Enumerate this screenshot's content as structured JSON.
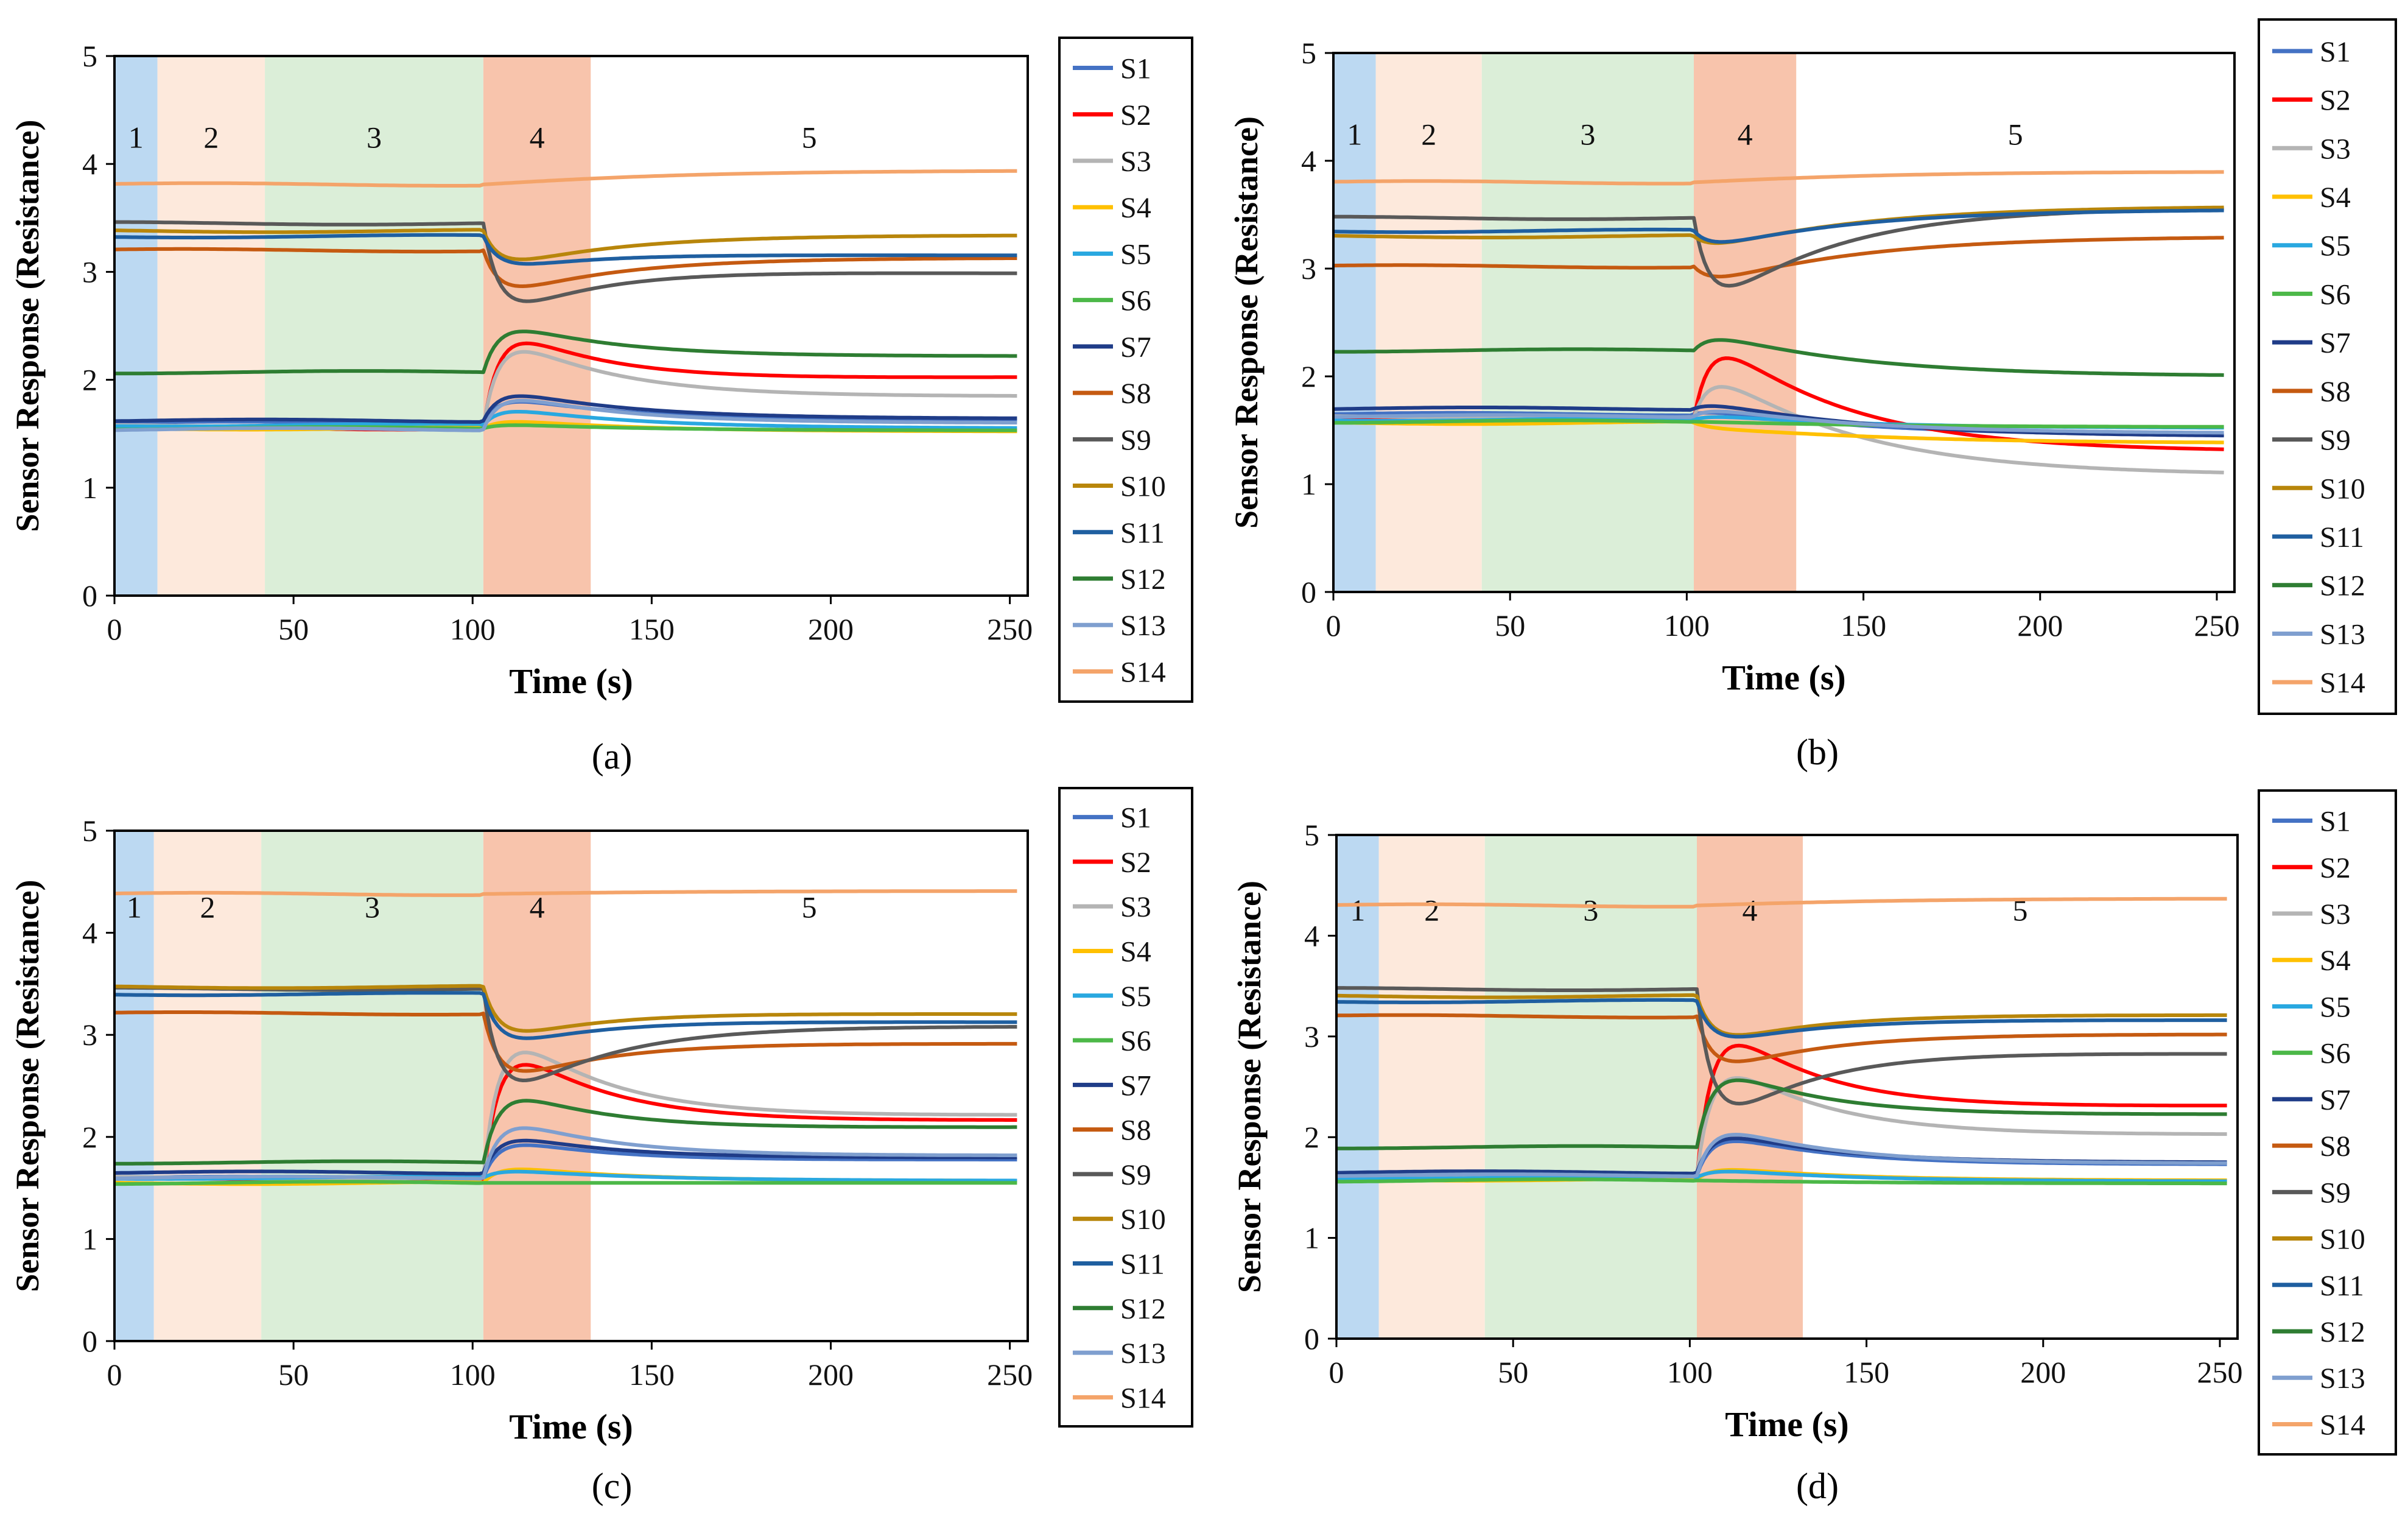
{
  "figure": {
    "phase_colors": [
      "#bcd9f2",
      "#fde9dc",
      "#dbeed8",
      "#f8c4ac",
      "#ffffff"
    ],
    "panels_order": [
      "a",
      "b",
      "c",
      "d"
    ]
  },
  "chart_data": [
    {
      "id": "a",
      "type": "line",
      "subcaption": "(a)",
      "xlabel": "Time (s)",
      "ylabel": "Sensor Response (Resistance)",
      "xlim": [
        0,
        255
      ],
      "ylim": [
        0,
        5
      ],
      "xticks": [
        0,
        50,
        100,
        150,
        200,
        250
      ],
      "yticks": [
        0,
        1,
        2,
        3,
        4,
        5
      ],
      "phases": [
        {
          "label": "1",
          "start": 0,
          "end": 12
        },
        {
          "label": "2",
          "start": 12,
          "end": 42
        },
        {
          "label": "3",
          "start": 42,
          "end": 103
        },
        {
          "label": "4",
          "start": 103,
          "end": 133
        },
        {
          "label": "5",
          "start": 133,
          "end": 255
        }
      ],
      "series": [
        {
          "name": "S1",
          "color": "#4472c4",
          "base": 1.6,
          "dip": 0.3,
          "final": 1.62
        },
        {
          "name": "S2",
          "color": "#ff0000",
          "base": 1.55,
          "dip": 1.1,
          "final": 2.03
        },
        {
          "name": "S3",
          "color": "#b4b4b4",
          "base": 1.57,
          "dip": 1.0,
          "final": 1.85
        },
        {
          "name": "S4",
          "color": "#ffc000",
          "base": 1.55,
          "dip": 0.1,
          "final": 1.52
        },
        {
          "name": "S5",
          "color": "#29a8e0",
          "base": 1.58,
          "dip": 0.2,
          "final": 1.55
        },
        {
          "name": "S6",
          "color": "#4cb848",
          "base": 1.55,
          "dip": 0.05,
          "final": 1.53
        },
        {
          "name": "S7",
          "color": "#1f3c88",
          "base": 1.62,
          "dip": 0.35,
          "final": 1.64
        },
        {
          "name": "S8",
          "color": "#c55a11",
          "base": 3.2,
          "dip": -0.5,
          "final": 3.13
        },
        {
          "name": "S9",
          "color": "#595959",
          "base": 3.45,
          "dip": -1.0,
          "final": 2.98
        },
        {
          "name": "S10",
          "color": "#b8860b",
          "base": 3.38,
          "dip": -0.4,
          "final": 3.34
        },
        {
          "name": "S11",
          "color": "#1f5fa0",
          "base": 3.33,
          "dip": -0.35,
          "final": 3.15
        },
        {
          "name": "S12",
          "color": "#2e7d32",
          "base": 2.07,
          "dip": 0.55,
          "final": 2.22
        },
        {
          "name": "S13",
          "color": "#7f9fcf",
          "base": 1.54,
          "dip": 0.4,
          "final": 1.6
        },
        {
          "name": "S14",
          "color": "#f4a46a",
          "base": 3.81,
          "dip": 0.0,
          "final": 3.94
        }
      ]
    },
    {
      "id": "b",
      "type": "line",
      "subcaption": "(b)",
      "xlabel": "Time (s)",
      "ylabel": "Sensor Response (Resistance)",
      "xlim": [
        0,
        255
      ],
      "ylim": [
        0,
        5
      ],
      "xticks": [
        0,
        50,
        100,
        150,
        200,
        250
      ],
      "yticks": [
        0,
        1,
        2,
        3,
        4,
        5
      ],
      "phases": [
        {
          "label": "1",
          "start": 0,
          "end": 12
        },
        {
          "label": "2",
          "start": 12,
          "end": 42
        },
        {
          "label": "3",
          "start": 42,
          "end": 102
        },
        {
          "label": "4",
          "start": 102,
          "end": 131
        },
        {
          "label": "5",
          "start": 131,
          "end": 255
        }
      ],
      "series": [
        {
          "name": "S1",
          "color": "#4472c4",
          "base": 1.65,
          "dip": 0.05,
          "final": 1.45
        },
        {
          "name": "S2",
          "color": "#ff0000",
          "base": 1.6,
          "dip": 0.95,
          "final": 1.3
        },
        {
          "name": "S3",
          "color": "#b4b4b4",
          "base": 1.62,
          "dip": 0.55,
          "final": 1.08
        },
        {
          "name": "S4",
          "color": "#ffc000",
          "base": 1.57,
          "dip": -0.05,
          "final": 1.38
        },
        {
          "name": "S5",
          "color": "#29a8e0",
          "base": 1.6,
          "dip": 0.05,
          "final": 1.52
        },
        {
          "name": "S6",
          "color": "#4cb848",
          "base": 1.58,
          "dip": 0.0,
          "final": 1.53
        },
        {
          "name": "S7",
          "color": "#1f3c88",
          "base": 1.7,
          "dip": 0.08,
          "final": 1.44
        },
        {
          "name": "S8",
          "color": "#c55a11",
          "base": 3.02,
          "dip": -0.2,
          "final": 3.3
        },
        {
          "name": "S9",
          "color": "#595959",
          "base": 3.47,
          "dip": -1.0,
          "final": 3.57
        },
        {
          "name": "S10",
          "color": "#b8860b",
          "base": 3.3,
          "dip": -0.15,
          "final": 3.58
        },
        {
          "name": "S11",
          "color": "#1f5fa0",
          "base": 3.35,
          "dip": -0.2,
          "final": 3.55
        },
        {
          "name": "S12",
          "color": "#2e7d32",
          "base": 2.24,
          "dip": 0.2,
          "final": 2.0
        },
        {
          "name": "S13",
          "color": "#7f9fcf",
          "base": 1.63,
          "dip": 0.1,
          "final": 1.47
        },
        {
          "name": "S14",
          "color": "#f4a46a",
          "base": 3.8,
          "dip": 0.0,
          "final": 3.9
        }
      ]
    },
    {
      "id": "c",
      "type": "line",
      "subcaption": "(c)",
      "xlabel": "Time (s)",
      "ylabel": "Sensor Response (Resistance)",
      "xlim": [
        0,
        255
      ],
      "ylim": [
        0,
        5
      ],
      "xticks": [
        0,
        50,
        100,
        150,
        200,
        250
      ],
      "yticks": [
        0,
        1,
        2,
        3,
        4,
        5
      ],
      "phases": [
        {
          "label": "1",
          "start": 0,
          "end": 11
        },
        {
          "label": "2",
          "start": 11,
          "end": 41
        },
        {
          "label": "3",
          "start": 41,
          "end": 103
        },
        {
          "label": "4",
          "start": 103,
          "end": 133
        },
        {
          "label": "5",
          "start": 133,
          "end": 255
        }
      ],
      "series": [
        {
          "name": "S1",
          "color": "#4472c4",
          "base": 1.6,
          "dip": 0.45,
          "final": 1.78
        },
        {
          "name": "S2",
          "color": "#ff0000",
          "base": 1.58,
          "dip": 1.6,
          "final": 2.17
        },
        {
          "name": "S3",
          "color": "#b4b4b4",
          "base": 1.6,
          "dip": 1.75,
          "final": 2.22
        },
        {
          "name": "S4",
          "color": "#ffc000",
          "base": 1.55,
          "dip": 0.2,
          "final": 1.57
        },
        {
          "name": "S5",
          "color": "#29a8e0",
          "base": 1.6,
          "dip": 0.1,
          "final": 1.57
        },
        {
          "name": "S6",
          "color": "#4cb848",
          "base": 1.55,
          "dip": 0.0,
          "final": 1.55
        },
        {
          "name": "S7",
          "color": "#1f3c88",
          "base": 1.65,
          "dip": 0.45,
          "final": 1.8
        },
        {
          "name": "S8",
          "color": "#c55a11",
          "base": 3.21,
          "dip": -0.8,
          "final": 2.91
        },
        {
          "name": "S9",
          "color": "#595959",
          "base": 3.45,
          "dip": -1.3,
          "final": 3.08
        },
        {
          "name": "S10",
          "color": "#b8860b",
          "base": 3.47,
          "dip": -0.6,
          "final": 3.2
        },
        {
          "name": "S11",
          "color": "#1f5fa0",
          "base": 3.4,
          "dip": -0.6,
          "final": 3.12
        },
        {
          "name": "S12",
          "color": "#2e7d32",
          "base": 1.75,
          "dip": 0.85,
          "final": 2.1
        },
        {
          "name": "S13",
          "color": "#7f9fcf",
          "base": 1.6,
          "dip": 0.7,
          "final": 1.82
        },
        {
          "name": "S14",
          "color": "#f4a46a",
          "base": 4.38,
          "dip": 0.0,
          "final": 4.41
        }
      ]
    },
    {
      "id": "d",
      "type": "line",
      "subcaption": "(d)",
      "xlabel": "Time (s)",
      "ylabel": "Sensor Response (Resistance)",
      "xlim": [
        0,
        255
      ],
      "ylim": [
        0,
        5
      ],
      "xticks": [
        0,
        50,
        100,
        150,
        200,
        250
      ],
      "yticks": [
        0,
        1,
        2,
        3,
        4,
        5
      ],
      "phases": [
        {
          "label": "1",
          "start": 0,
          "end": 12
        },
        {
          "label": "2",
          "start": 12,
          "end": 42
        },
        {
          "label": "3",
          "start": 42,
          "end": 102
        },
        {
          "label": "4",
          "start": 102,
          "end": 132
        },
        {
          "label": "5",
          "start": 132,
          "end": 255
        }
      ],
      "series": [
        {
          "name": "S1",
          "color": "#4472c4",
          "base": 1.62,
          "dip": 0.5,
          "final": 1.73
        },
        {
          "name": "S2",
          "color": "#ff0000",
          "base": 1.6,
          "dip": 1.85,
          "final": 2.32
        },
        {
          "name": "S3",
          "color": "#b4b4b4",
          "base": 1.62,
          "dip": 1.4,
          "final": 2.03
        },
        {
          "name": "S4",
          "color": "#ffc000",
          "base": 1.58,
          "dip": 0.15,
          "final": 1.57
        },
        {
          "name": "S5",
          "color": "#29a8e0",
          "base": 1.6,
          "dip": 0.1,
          "final": 1.56
        },
        {
          "name": "S6",
          "color": "#4cb848",
          "base": 1.57,
          "dip": 0.0,
          "final": 1.54
        },
        {
          "name": "S7",
          "color": "#1f3c88",
          "base": 1.65,
          "dip": 0.5,
          "final": 1.75
        },
        {
          "name": "S8",
          "color": "#c55a11",
          "base": 3.2,
          "dip": -0.65,
          "final": 3.02
        },
        {
          "name": "S9",
          "color": "#595959",
          "base": 3.47,
          "dip": -1.6,
          "final": 2.82
        },
        {
          "name": "S10",
          "color": "#b8860b",
          "base": 3.4,
          "dip": -0.55,
          "final": 3.21
        },
        {
          "name": "S11",
          "color": "#1f5fa0",
          "base": 3.35,
          "dip": -0.5,
          "final": 3.16
        },
        {
          "name": "S12",
          "color": "#2e7d32",
          "base": 1.9,
          "dip": 0.95,
          "final": 2.23
        },
        {
          "name": "S13",
          "color": "#7f9fcf",
          "base": 1.62,
          "dip": 0.6,
          "final": 1.74
        },
        {
          "name": "S14",
          "color": "#f4a46a",
          "base": 4.3,
          "dip": 0.0,
          "final": 4.37
        }
      ]
    }
  ]
}
